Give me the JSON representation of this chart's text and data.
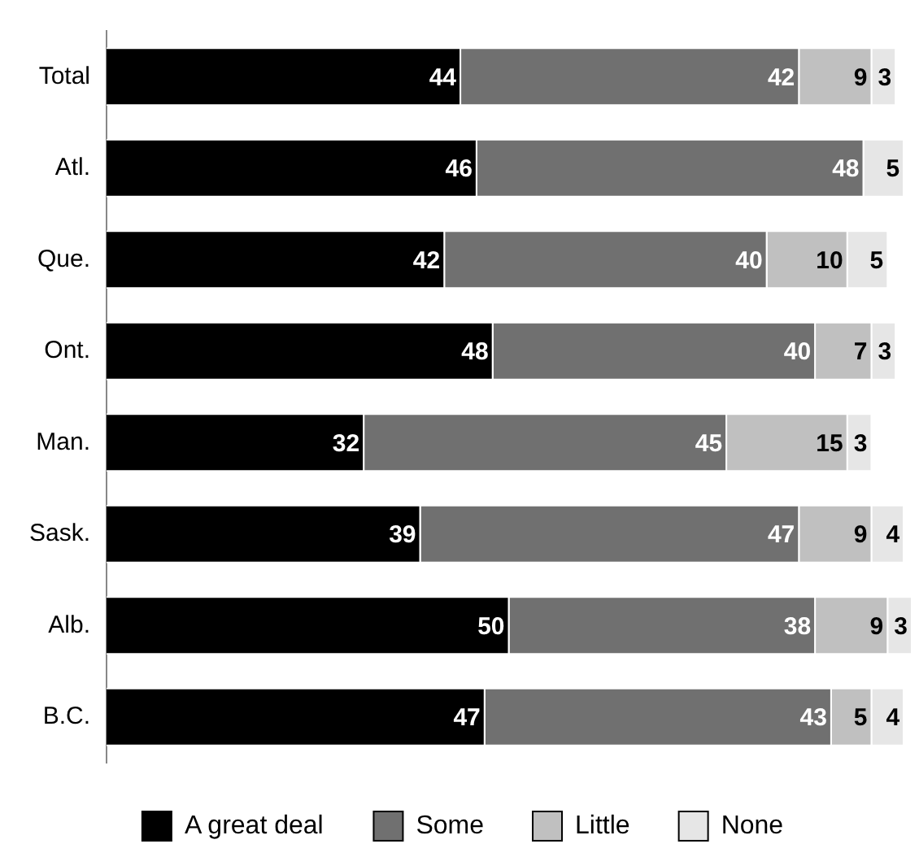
{
  "chart_data": {
    "type": "bar",
    "orientation": "horizontal",
    "stacked": true,
    "data_labels": true,
    "legend": "bottom",
    "grid": false,
    "tick_labels": "y",
    "categories": [
      "Total",
      "Atl.",
      "Que.",
      "Ont.",
      "Man.",
      "Sask.",
      "Alb.",
      "B.C."
    ],
    "xlim": [
      0,
      100
    ],
    "series": [
      {
        "name": "A great deal",
        "color": "#000000",
        "values": [
          44,
          46,
          42,
          48,
          32,
          39,
          50,
          47
        ]
      },
      {
        "name": "Some",
        "color": "#707070",
        "values": [
          42,
          48,
          40,
          40,
          45,
          47,
          38,
          43
        ]
      },
      {
        "name": "Little",
        "color": "#c0c0c0",
        "values": [
          9,
          null,
          10,
          7,
          15,
          9,
          9,
          5
        ]
      },
      {
        "name": "None",
        "color": "#e6e6e6",
        "values": [
          3,
          5,
          5,
          3,
          3,
          4,
          3,
          4
        ]
      }
    ]
  }
}
